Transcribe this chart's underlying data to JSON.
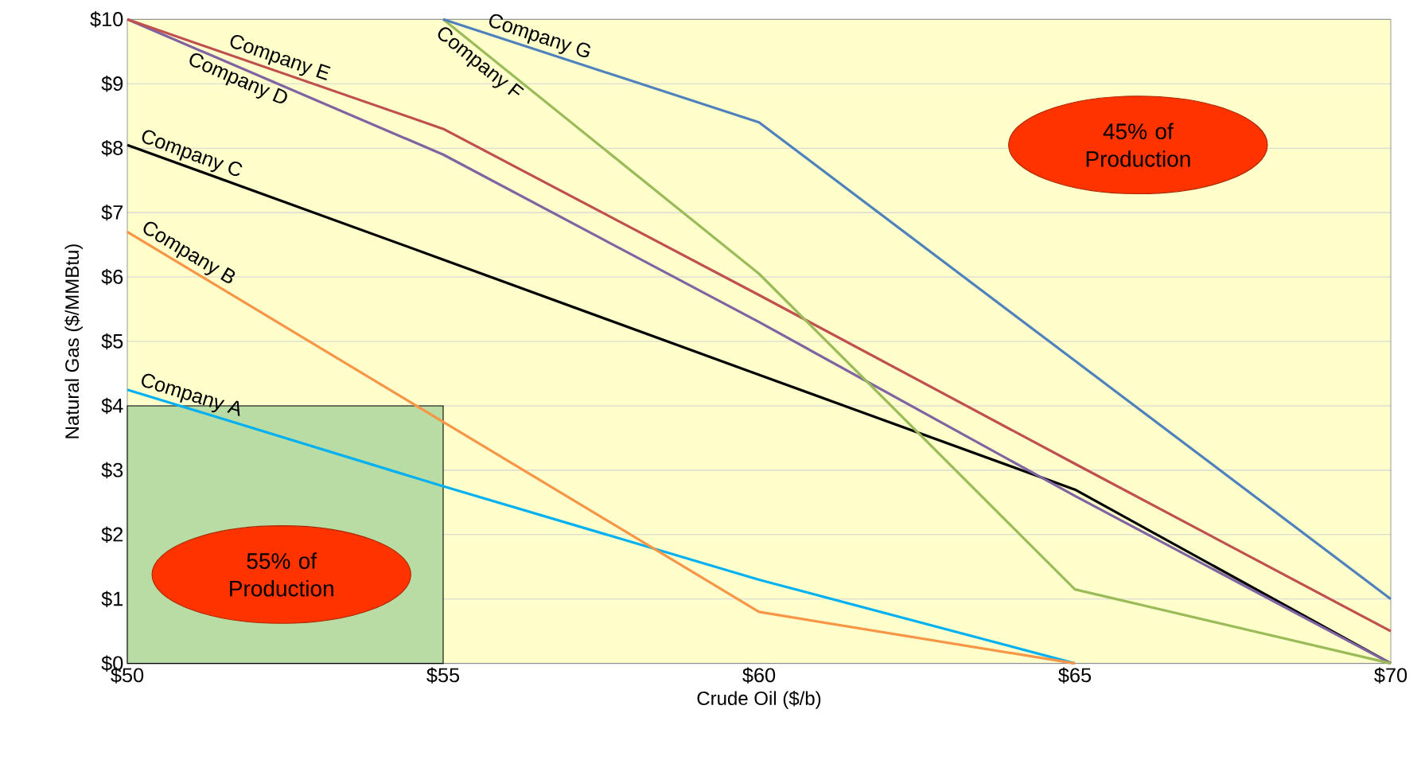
{
  "chart_data": {
    "type": "line",
    "xlabel": "Crude Oil ($/b)",
    "ylabel": "Natural Gas ($/MMBtu)",
    "x": [
      50,
      55,
      60,
      65,
      70
    ],
    "xlim": [
      50,
      70
    ],
    "ylim": [
      0,
      10
    ],
    "xticks": [
      {
        "value": 50,
        "label": "$50"
      },
      {
        "value": 55,
        "label": "$55"
      },
      {
        "value": 60,
        "label": "$60"
      },
      {
        "value": 65,
        "label": "$65"
      },
      {
        "value": 70,
        "label": "$70"
      }
    ],
    "yticks": [
      {
        "value": 0,
        "label": "$0"
      },
      {
        "value": 1,
        "label": "$1"
      },
      {
        "value": 2,
        "label": "$2"
      },
      {
        "value": 3,
        "label": "$3"
      },
      {
        "value": 4,
        "label": "$4"
      },
      {
        "value": 5,
        "label": "$5"
      },
      {
        "value": 6,
        "label": "$6"
      },
      {
        "value": 7,
        "label": "$7"
      },
      {
        "value": 8,
        "label": "$8"
      },
      {
        "value": 9,
        "label": "$9"
      },
      {
        "value": 10,
        "label": "$10"
      }
    ],
    "grid": "y",
    "series": [
      {
        "type": "area",
        "color": "#b8dca4",
        "x": [
          50,
          55
        ],
        "values": [
          4,
          4
        ]
      },
      {
        "name": "Company A",
        "color": "#00b0f0",
        "values": [
          4.25,
          2.75,
          1.3,
          0,
          null
        ]
      },
      {
        "name": "Company B",
        "color": "#f79646",
        "values": [
          6.7,
          3.75,
          0.8,
          0,
          null
        ]
      },
      {
        "name": "Company C",
        "color": "#000000",
        "values": [
          8.05,
          6.27,
          4.48,
          2.7,
          0
        ]
      },
      {
        "name": "Company D",
        "color": "#8064a2",
        "values": [
          10,
          7.9,
          5.3,
          2.6,
          0
        ]
      },
      {
        "name": "Company E",
        "color": "#c0504d",
        "values": [
          10,
          8.3,
          5.72,
          3.1,
          0.5
        ]
      },
      {
        "name": "Company F",
        "color": "#9bbb59",
        "values": [
          null,
          10,
          6.05,
          1.15,
          0
        ]
      },
      {
        "name": "Company G",
        "color": "#4f81bd",
        "values": [
          null,
          10,
          8.4,
          4.7,
          1.0
        ]
      }
    ],
    "annotations": [
      "45% of Production",
      "55% of Production"
    ]
  }
}
